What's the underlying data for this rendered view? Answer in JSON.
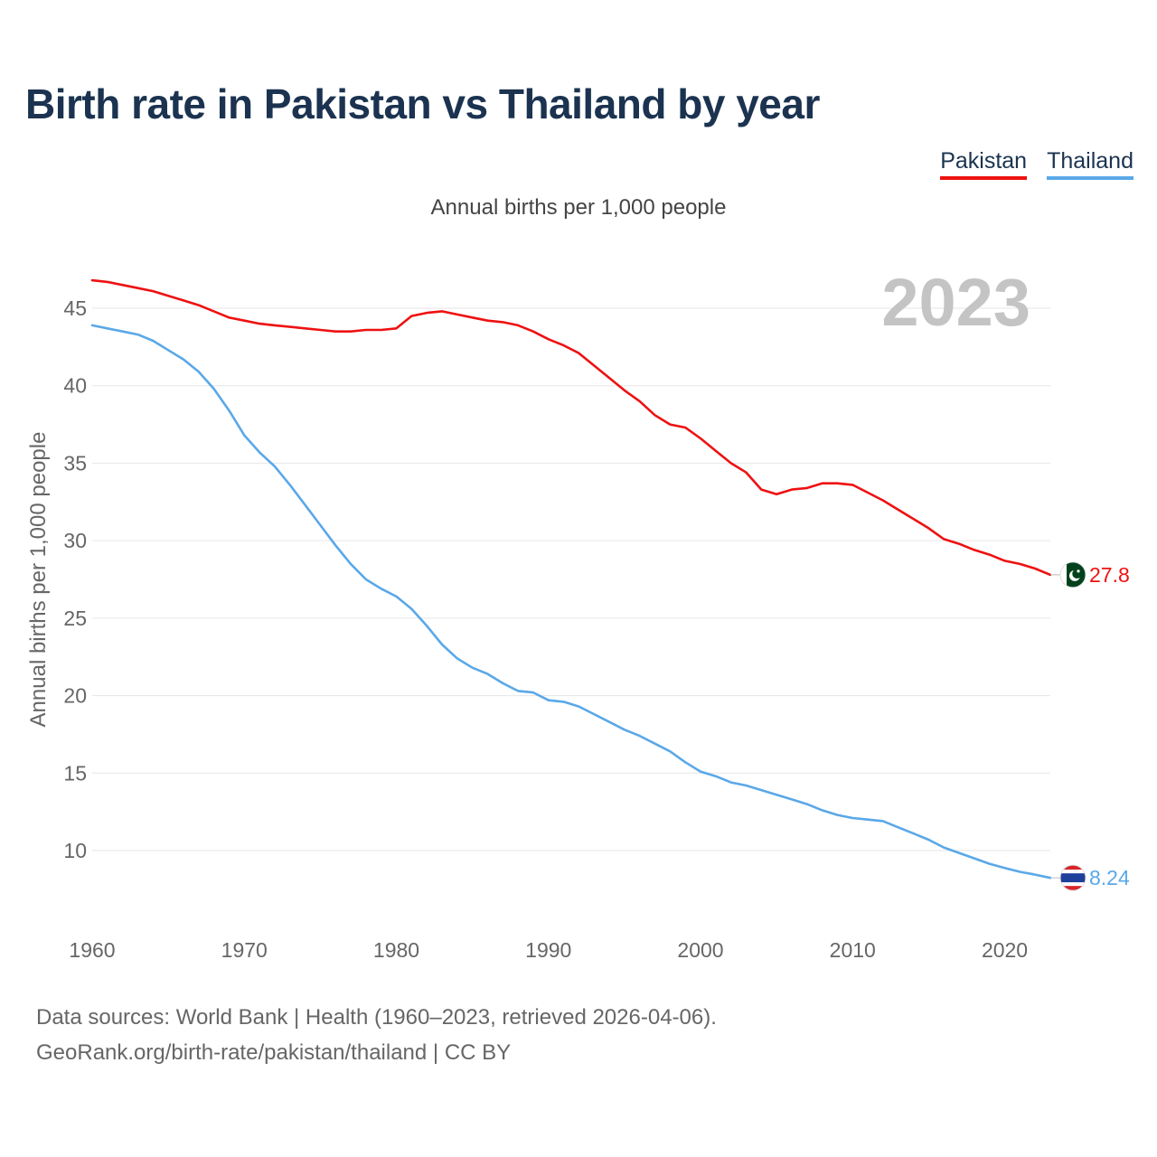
{
  "title": "Birth rate in Pakistan vs Thailand by year",
  "subtitle": "Annual births per 1,000 people",
  "legend": [
    {
      "name": "Pakistan",
      "color": "#ee1111"
    },
    {
      "name": "Thailand",
      "color": "#5aa8e8"
    }
  ],
  "current_year": "2023",
  "footer": {
    "source": "Data sources: World Bank | Health (1960–2023, retrieved 2026-04-06).",
    "credit": "GeoRank.org/birth-rate/pakistan/thailand | CC BY"
  },
  "flag_icons": {
    "Pakistan": "pakistan-flag-icon",
    "Thailand": "thailand-flag-icon"
  },
  "chart_data": {
    "type": "line",
    "title": "Birth rate in Pakistan vs Thailand by year",
    "ylabel": "Annual births per 1,000 people",
    "xlabel": "",
    "xlim": [
      1960,
      2023
    ],
    "ylim": [
      5,
      48
    ],
    "yticks": [
      10,
      15,
      20,
      25,
      30,
      35,
      40,
      45
    ],
    "xticks": [
      1960,
      1970,
      1980,
      1990,
      2000,
      2010,
      2020
    ],
    "grid": true,
    "legend_position": "top-right",
    "x": [
      1960,
      1961,
      1962,
      1963,
      1964,
      1965,
      1966,
      1967,
      1968,
      1969,
      1970,
      1971,
      1972,
      1973,
      1974,
      1975,
      1976,
      1977,
      1978,
      1979,
      1980,
      1981,
      1982,
      1983,
      1984,
      1985,
      1986,
      1987,
      1988,
      1989,
      1990,
      1991,
      1992,
      1993,
      1994,
      1995,
      1996,
      1997,
      1998,
      1999,
      2000,
      2001,
      2002,
      2003,
      2004,
      2005,
      2006,
      2007,
      2008,
      2009,
      2010,
      2011,
      2012,
      2013,
      2014,
      2015,
      2016,
      2017,
      2018,
      2019,
      2020,
      2021,
      2022,
      2023
    ],
    "series": [
      {
        "name": "Pakistan",
        "color": "#ee1111",
        "end_label": "27.8",
        "values": [
          46.8,
          46.7,
          46.5,
          46.3,
          46.1,
          45.8,
          45.5,
          45.2,
          44.8,
          44.4,
          44.2,
          44.0,
          43.9,
          43.8,
          43.7,
          43.6,
          43.5,
          43.5,
          43.6,
          43.6,
          43.7,
          44.5,
          44.7,
          44.8,
          44.6,
          44.4,
          44.2,
          44.1,
          43.9,
          43.5,
          43.0,
          42.6,
          42.1,
          41.3,
          40.5,
          39.7,
          39.0,
          38.1,
          37.5,
          37.3,
          36.6,
          35.8,
          35.0,
          34.4,
          33.3,
          33.0,
          33.3,
          33.4,
          33.7,
          33.7,
          33.6,
          33.1,
          32.6,
          32.0,
          31.4,
          30.8,
          30.1,
          29.8,
          29.4,
          29.1,
          28.7,
          28.5,
          28.2,
          27.8
        ]
      },
      {
        "name": "Thailand",
        "color": "#5aa8e8",
        "end_label": "8.24",
        "values": [
          43.9,
          43.7,
          43.5,
          43.3,
          42.9,
          42.3,
          41.7,
          40.9,
          39.8,
          38.4,
          36.8,
          35.7,
          34.8,
          33.6,
          32.3,
          31.0,
          29.7,
          28.5,
          27.5,
          26.9,
          26.4,
          25.6,
          24.5,
          23.3,
          22.4,
          21.8,
          21.4,
          20.8,
          20.3,
          20.2,
          19.7,
          19.6,
          19.3,
          18.8,
          18.3,
          17.8,
          17.4,
          16.9,
          16.4,
          15.7,
          15.1,
          14.8,
          14.4,
          14.2,
          13.9,
          13.6,
          13.3,
          13.0,
          12.6,
          12.3,
          12.1,
          12.0,
          11.9,
          11.5,
          11.1,
          10.7,
          10.2,
          9.85,
          9.5,
          9.15,
          8.88,
          8.63,
          8.45,
          8.24
        ]
      }
    ]
  }
}
